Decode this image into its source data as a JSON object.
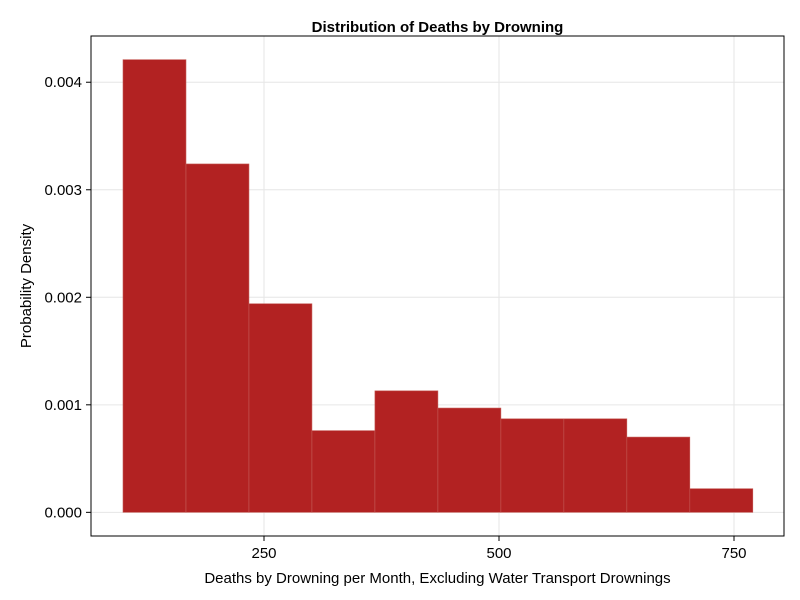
{
  "chart_data": {
    "type": "bar",
    "title": "Distribution of Deaths by Drowning",
    "xlabel": "Deaths by Drowning per Month, Excluding Water Transport Drownings",
    "ylabel": "Probability Density",
    "bins": [
      {
        "x0": 100,
        "x1": 167,
        "density": 0.00421
      },
      {
        "x0": 167,
        "x1": 234,
        "density": 0.00324
      },
      {
        "x0": 234,
        "x1": 301,
        "density": 0.00194
      },
      {
        "x0": 301,
        "x1": 368,
        "density": 0.00076
      },
      {
        "x0": 368,
        "x1": 435,
        "density": 0.00113
      },
      {
        "x0": 435,
        "x1": 502,
        "density": 0.00097
      },
      {
        "x0": 502,
        "x1": 569,
        "density": 0.00087
      },
      {
        "x0": 569,
        "x1": 636,
        "density": 0.00087
      },
      {
        "x0": 636,
        "x1": 703,
        "density": 0.0007
      },
      {
        "x0": 703,
        "x1": 770,
        "density": 0.00022
      }
    ],
    "xlim": [
      0,
      850
    ],
    "ylim": [
      -0.00022,
      0.00443
    ],
    "xticks": [
      250,
      500,
      750
    ],
    "xtick_labels": [
      "250",
      "500",
      "750"
    ],
    "yticks": [
      0,
      0.001,
      0.002,
      0.003,
      0.004
    ],
    "ytick_labels": [
      "0.000",
      "0.001",
      "0.002",
      "0.003",
      "0.004"
    ],
    "grid": true,
    "colors": {
      "bar": "#b22222"
    }
  }
}
